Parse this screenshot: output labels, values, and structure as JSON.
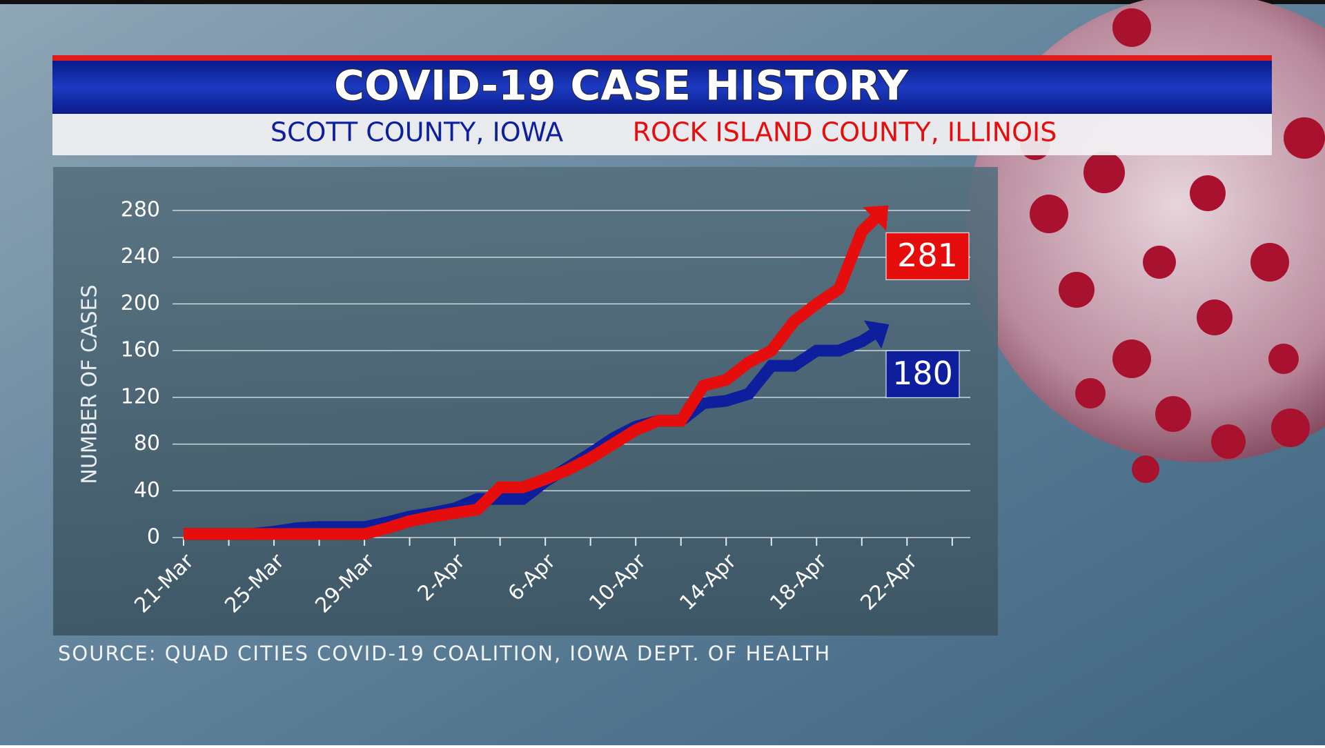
{
  "chart_data": {
    "type": "line",
    "title": "COVID-19 CASE HISTORY",
    "y_label": "NUMBER OF CASES",
    "source": "SOURCE: QUAD CITIES COVID-19 COALITION, IOWA DEPT. OF HEALTH",
    "categories": [
      "21-Mar",
      null,
      null,
      null,
      "25-Mar",
      null,
      null,
      null,
      "29-Mar",
      null,
      null,
      null,
      "2-Apr",
      null,
      null,
      null,
      "6-Apr",
      null,
      null,
      null,
      "10-Apr",
      null,
      null,
      null,
      "14-Apr",
      null,
      null,
      null,
      "18-Apr",
      null,
      null,
      null,
      "22-Apr",
      null,
      null
    ],
    "series": [
      {
        "name": "SCOTT COUNTY, IOWA",
        "color": "#0d1f9c",
        "values": [
          3,
          3,
          3,
          3,
          5,
          8,
          9,
          9,
          9,
          13,
          18,
          21,
          25,
          33,
          33,
          33,
          48,
          60,
          72,
          85,
          95,
          100,
          100,
          115,
          117,
          123,
          147,
          147,
          160,
          160,
          168,
          180,
          null,
          null,
          null
        ]
      },
      {
        "name": "ROCK ISLAND COUNTY, ILLINOIS",
        "color": "#e60d0d",
        "values": [
          3,
          3,
          3,
          3,
          3,
          3,
          3,
          3,
          3,
          8,
          14,
          18,
          21,
          24,
          43,
          43,
          50,
          58,
          68,
          80,
          92,
          100,
          100,
          130,
          135,
          150,
          160,
          185,
          200,
          213,
          262,
          281,
          null,
          null,
          null
        ]
      }
    ],
    "ylim": [
      0,
      280
    ],
    "yticks": [
      0,
      40,
      80,
      120,
      160,
      200,
      240,
      280
    ],
    "grid": true
  }
}
